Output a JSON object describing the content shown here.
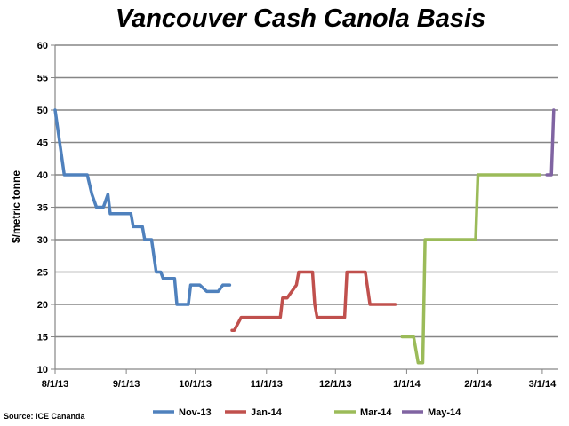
{
  "chart_data": {
    "type": "line",
    "title": "Vancouver Cash Canola Basis",
    "ylabel": "$/metric tonne",
    "xlabel": "",
    "ylim": [
      10,
      60
    ],
    "yticks": [
      10,
      15,
      20,
      25,
      30,
      35,
      40,
      45,
      50,
      55,
      60
    ],
    "xlim": [
      "2013-08-01",
      "2014-03-08"
    ],
    "xticks": [
      {
        "date": "2013-08-01",
        "label": "8/1/13"
      },
      {
        "date": "2013-09-01",
        "label": "9/1/13"
      },
      {
        "date": "2013-10-01",
        "label": "10/1/13"
      },
      {
        "date": "2013-11-01",
        "label": "11/1/13"
      },
      {
        "date": "2013-12-01",
        "label": "12/1/13"
      },
      {
        "date": "2014-01-01",
        "label": "1/1/14"
      },
      {
        "date": "2014-02-01",
        "label": "2/1/14"
      },
      {
        "date": "2014-03-01",
        "label": "3/1/14"
      }
    ],
    "grid": true,
    "legend_position": "bottom",
    "source": "Source: ICE Cananda",
    "series": [
      {
        "name": "Nov-13",
        "color": "#4f81bd",
        "points": [
          [
            "2013-08-01",
            50
          ],
          [
            "2013-08-05",
            40
          ],
          [
            "2013-08-15",
            40
          ],
          [
            "2013-08-17",
            37
          ],
          [
            "2013-08-19",
            35
          ],
          [
            "2013-08-22",
            35
          ],
          [
            "2013-08-24",
            37
          ],
          [
            "2013-08-25",
            34
          ],
          [
            "2013-08-27",
            34
          ],
          [
            "2013-09-03",
            34
          ],
          [
            "2013-09-04",
            32
          ],
          [
            "2013-09-08",
            32
          ],
          [
            "2013-09-09",
            30
          ],
          [
            "2013-09-12",
            30
          ],
          [
            "2013-09-14",
            25
          ],
          [
            "2013-09-16",
            25
          ],
          [
            "2013-09-17",
            24
          ],
          [
            "2013-09-22",
            24
          ],
          [
            "2013-09-23",
            20
          ],
          [
            "2013-09-28",
            20
          ],
          [
            "2013-09-29",
            23
          ],
          [
            "2013-10-03",
            23
          ],
          [
            "2013-10-06",
            22
          ],
          [
            "2013-10-11",
            22
          ],
          [
            "2013-10-13",
            23
          ],
          [
            "2013-10-16",
            23
          ]
        ]
      },
      {
        "name": "Jan-14",
        "color": "#c0504d",
        "points": [
          [
            "2013-10-17",
            16
          ],
          [
            "2013-10-18",
            16
          ],
          [
            "2013-10-21",
            18
          ],
          [
            "2013-11-07",
            18
          ],
          [
            "2013-11-08",
            21
          ],
          [
            "2013-11-10",
            21
          ],
          [
            "2013-11-14",
            23
          ],
          [
            "2013-11-15",
            25
          ],
          [
            "2013-11-21",
            25
          ],
          [
            "2013-11-22",
            20
          ],
          [
            "2013-11-23",
            18
          ],
          [
            "2013-12-05",
            18
          ],
          [
            "2013-12-06",
            25
          ],
          [
            "2013-12-14",
            25
          ],
          [
            "2013-12-16",
            20
          ],
          [
            "2013-12-27",
            20
          ]
        ]
      },
      {
        "name": "Mar-14",
        "color": "#9bbb59",
        "points": [
          [
            "2013-12-30",
            15
          ],
          [
            "2014-01-04",
            15
          ],
          [
            "2014-01-06",
            11
          ],
          [
            "2014-01-08",
            11
          ],
          [
            "2014-01-09",
            30
          ],
          [
            "2014-01-31",
            30
          ],
          [
            "2014-02-01",
            40
          ],
          [
            "2014-02-28",
            40
          ]
        ]
      },
      {
        "name": "May-14",
        "color": "#8064a2",
        "points": [
          [
            "2014-03-03",
            40
          ],
          [
            "2014-03-05",
            40
          ],
          [
            "2014-03-06",
            50
          ]
        ]
      }
    ]
  }
}
